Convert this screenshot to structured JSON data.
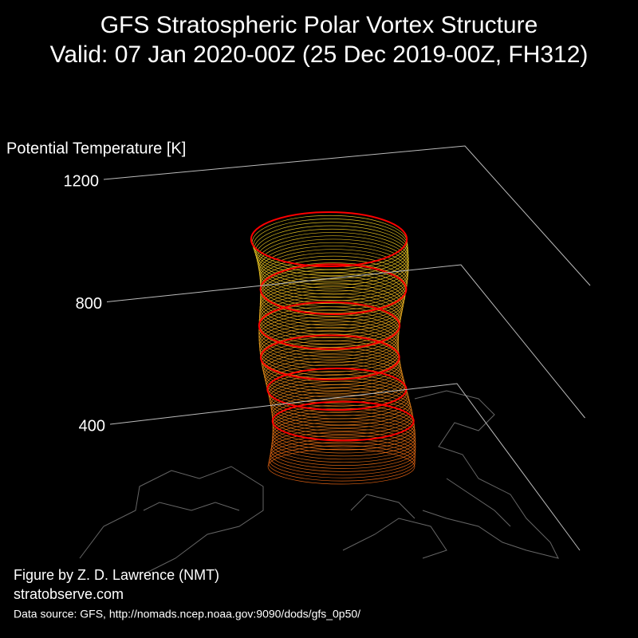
{
  "chart_data": {
    "type": "surface3d",
    "title": "GFS Stratospheric Polar Vortex Structure",
    "subtitle": "Valid: 07 Jan 2020-00Z  (25 Dec 2019-00Z, FH312)",
    "zlabel": "Potential Temperature [K]",
    "zticks": [
      400,
      800,
      1200
    ],
    "annotations": [
      "Figure by Z. D. Lawrence (NMT)",
      "stratobserve.com",
      "Data source: GFS, http://nomads.ncep.noaa.gov:9090/dods/gfs_0p50/"
    ]
  }
}
